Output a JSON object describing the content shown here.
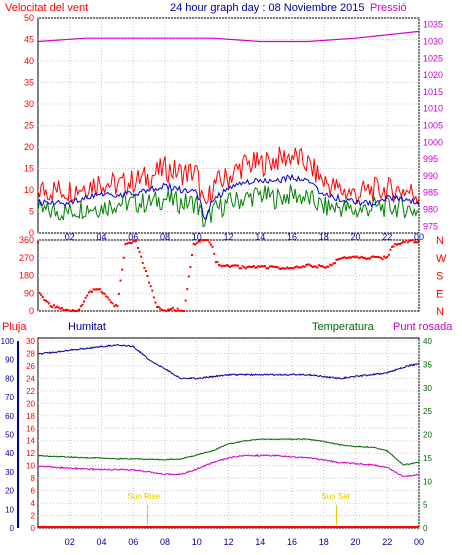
{
  "title": "24 hour graph day : 08 Noviembre 2015",
  "labels": {
    "wind_speed": "Velocitat del vent",
    "pressure": "Pressió",
    "rain": "Pluja",
    "humidity": "Humitat",
    "temperature": "Temperatura",
    "dew_point": "Punt rosada",
    "sunrise": "Sun Rise",
    "sunset": "Sun Set"
  },
  "colors": {
    "wind_speed": "#ff0000",
    "wind_gust": "#ff0000",
    "wind_avg": "#0000cc",
    "wind_green": "#008000",
    "pressure": "#cc00cc",
    "direction": "#ff0000",
    "rain": "#ff0000",
    "humidity": "#000099",
    "temperature": "#006600",
    "dew_point": "#cc00cc",
    "title": "#000099",
    "sun": "#e6c800"
  },
  "chart_data": [
    {
      "type": "line",
      "panel": "wind_pressure",
      "x_ticks": [
        "02",
        "04",
        "06",
        "08",
        "10",
        "12",
        "14",
        "16",
        "18",
        "20",
        "22",
        "00"
      ],
      "y_left": {
        "label": "Velocitat del vent",
        "ylim": [
          0,
          50
        ],
        "ticks": [
          0,
          5,
          10,
          15,
          20,
          25,
          30,
          35,
          40,
          45,
          50
        ]
      },
      "y_right": {
        "label": "Pressió",
        "ylim": [
          973,
          1037
        ],
        "ticks": [
          975,
          980,
          985,
          990,
          995,
          1000,
          1005,
          1010,
          1015,
          1020,
          1025,
          1030,
          1035
        ]
      },
      "x_range": [
        0,
        24
      ],
      "series": [
        {
          "key": "gust",
          "axis": "left",
          "x": [
            0,
            1,
            2,
            3,
            4,
            5,
            6,
            7,
            8,
            9,
            10,
            10.5,
            11,
            12,
            13,
            14,
            15,
            16,
            17,
            18,
            19,
            20,
            21,
            22,
            23,
            24
          ],
          "values": [
            10,
            10,
            10,
            11,
            12,
            11,
            12,
            13,
            15,
            14,
            14,
            5,
            11,
            13,
            16,
            16,
            17,
            18,
            16,
            12,
            10,
            9,
            10,
            10,
            10,
            9
          ]
        },
        {
          "key": "avg",
          "axis": "left",
          "x": [
            0,
            1,
            2,
            3,
            4,
            5,
            6,
            7,
            8,
            9,
            10,
            10.5,
            11,
            12,
            13,
            14,
            15,
            16,
            17,
            18,
            19,
            20,
            21,
            22,
            23,
            24
          ],
          "values": [
            7,
            7,
            7,
            8,
            9,
            9,
            9,
            10,
            11,
            10,
            10,
            3,
            8,
            10,
            12,
            12,
            12,
            13,
            12,
            9,
            8,
            7,
            7,
            8,
            8,
            7
          ]
        },
        {
          "key": "low",
          "axis": "left",
          "x": [
            0,
            1,
            2,
            3,
            4,
            5,
            6,
            7,
            8,
            9,
            10,
            10.5,
            11,
            12,
            13,
            14,
            15,
            16,
            17,
            18,
            19,
            20,
            21,
            22,
            23,
            24
          ],
          "values": [
            5,
            5,
            5,
            6,
            6,
            7,
            7,
            7,
            8,
            7,
            7,
            2,
            5,
            7,
            8,
            9,
            8,
            9,
            8,
            6,
            6,
            5,
            6,
            6,
            6,
            5
          ]
        },
        {
          "key": "pressure",
          "axis": "right",
          "x": [
            0,
            3,
            6,
            9,
            11,
            14,
            17,
            20,
            22,
            24
          ],
          "values": [
            1030,
            1031,
            1031,
            1031,
            1031,
            1030,
            1030,
            1031,
            1032,
            1033
          ]
        }
      ]
    },
    {
      "type": "scatter",
      "panel": "wind_direction",
      "x_ticks": [
        "02",
        "04",
        "06",
        "08",
        "10",
        "12",
        "14",
        "16",
        "18",
        "20",
        "22",
        "00"
      ],
      "ylim": [
        0,
        360
      ],
      "ticks": [
        0,
        90,
        180,
        270,
        360
      ],
      "compass": [
        "N",
        "W",
        "S",
        "E",
        "N"
      ],
      "series": [
        {
          "key": "direction",
          "x": [
            0.1,
            0.4,
            0.8,
            1.2,
            2.5,
            3.3,
            3.8,
            4.2,
            4.6,
            5.0,
            5.5,
            6.2,
            7.5,
            8.0,
            8.5,
            9.2,
            9.8,
            10.3,
            10.7,
            11.0,
            11.2,
            11.5,
            12,
            13,
            14,
            15,
            16,
            17,
            18,
            18.5,
            19,
            20,
            21,
            22,
            22.3,
            23,
            24
          ],
          "values": [
            90,
            60,
            30,
            15,
            0,
            100,
            110,
            90,
            40,
            20,
            340,
            350,
            20,
            0,
            10,
            0,
            340,
            360,
            360,
            320,
            250,
            230,
            230,
            220,
            225,
            220,
            215,
            230,
            225,
            230,
            270,
            270,
            270,
            270,
            330,
            350,
            355
          ]
        }
      ]
    },
    {
      "type": "line",
      "panel": "temp_humidity",
      "x_ticks": [
        "02",
        "04",
        "06",
        "08",
        "10",
        "12",
        "14",
        "16",
        "18",
        "20",
        "22",
        "00"
      ],
      "y_rain": {
        "label": "Pluja",
        "ylim": [
          0,
          30
        ],
        "ticks": [
          0,
          2,
          4,
          6,
          8,
          10,
          12,
          14,
          16,
          18,
          20,
          22,
          24,
          26,
          28,
          30
        ]
      },
      "y_humidity": {
        "label": "Humitat",
        "ylim": [
          0,
          100
        ],
        "ticks": [
          0,
          10,
          20,
          30,
          40,
          50,
          60,
          70,
          80,
          90,
          100
        ]
      },
      "y_temp": {
        "label": "Temperatura",
        "ylim": [
          0,
          40
        ],
        "ticks": [
          0,
          5,
          10,
          15,
          20,
          25,
          30,
          35,
          40
        ]
      },
      "sunrise_hour": 6.9,
      "sunset_hour": 18.8,
      "series": [
        {
          "key": "humidity",
          "x": [
            0,
            1,
            2,
            3,
            4,
            5,
            6,
            7,
            8,
            9,
            10,
            11,
            12,
            13,
            14,
            15,
            16,
            17,
            18,
            19,
            20,
            21,
            22,
            23,
            24
          ],
          "values": [
            93,
            94,
            95,
            96,
            97,
            98,
            97,
            90,
            85,
            80,
            80,
            81,
            82,
            82,
            82,
            82,
            82,
            82,
            81,
            80,
            81,
            82,
            83,
            86,
            88
          ]
        },
        {
          "key": "temperature",
          "x": [
            0,
            1,
            2,
            3,
            4,
            5,
            6,
            7,
            8,
            9,
            10,
            11,
            12,
            13,
            14,
            15,
            16,
            17,
            18,
            19,
            20,
            21,
            22,
            23,
            24
          ],
          "values": [
            15.5,
            15.3,
            15.2,
            15.0,
            15.0,
            14.8,
            14.8,
            14.7,
            14.6,
            14.8,
            15.6,
            16.5,
            18.0,
            18.6,
            19.0,
            19.0,
            19.0,
            19.0,
            18.5,
            17.8,
            17.4,
            17.3,
            16.5,
            13.5,
            14.0
          ]
        },
        {
          "key": "dew_point",
          "x": [
            0,
            1,
            2,
            3,
            4,
            5,
            6,
            7,
            8,
            9,
            10,
            11,
            12,
            13,
            14,
            15,
            16,
            17,
            18,
            19,
            20,
            21,
            22,
            23,
            24
          ],
          "values": [
            13.2,
            13.0,
            12.8,
            12.6,
            12.5,
            12.5,
            12.4,
            12.0,
            11.5,
            11.5,
            12.6,
            14.0,
            15.0,
            15.5,
            15.5,
            15.5,
            15.2,
            15.0,
            14.5,
            14.0,
            13.8,
            13.5,
            13.0,
            11.0,
            11.5
          ]
        },
        {
          "key": "rain",
          "x": [
            0,
            24
          ],
          "values": [
            0,
            0
          ]
        }
      ]
    }
  ]
}
